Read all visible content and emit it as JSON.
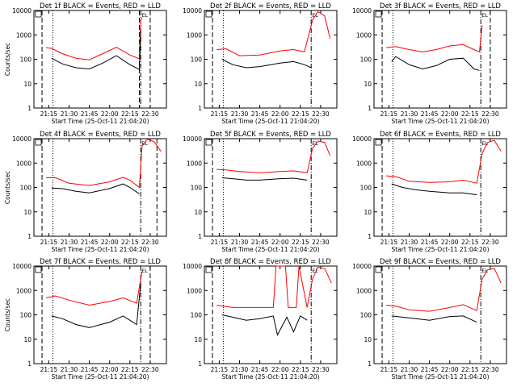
{
  "figure": {
    "x_tick_labels": [
      "21:15",
      "21:30",
      "21:45",
      "22:00",
      "22:15",
      "22:30"
    ],
    "y_tick_labels": [
      "1",
      "10",
      "100",
      "1000",
      "10000"
    ],
    "colors": {
      "events": "#000000",
      "lld": "#ff0000",
      "axes": "#000000",
      "background": "#ffffff"
    }
  },
  "chart_data": [
    {
      "type": "line",
      "title": "Det 1f BLACK = Events, RED = LLD",
      "xlabel": "Start Time (25-Oct-11 21:04:20)",
      "ylabel": "Counts/sec",
      "y_scale": "log",
      "ylim": [
        1,
        10000
      ],
      "xlim": [
        "21:04",
        "22:42"
      ],
      "x_ticks": [
        "21:15",
        "21:30",
        "21:45",
        "22:00",
        "22:15",
        "22:30"
      ],
      "y_ticks": [
        1,
        10,
        100,
        1000,
        10000
      ],
      "markers": {
        "dashed": [
          "21:10",
          "22:22",
          "22:30"
        ],
        "dotted": [
          "21:18"
        ],
        "dashdot": [
          "22:23"
        ]
      },
      "end_label": "EL",
      "series": [
        {
          "color": "#ff0000",
          "x": [
            "21:13",
            "21:17",
            "21:25",
            "21:35",
            "21:45",
            "21:55",
            "22:05",
            "22:15",
            "22:22",
            "22:23",
            "22:24"
          ],
          "values": [
            300,
            280,
            170,
            110,
            95,
            170,
            310,
            150,
            105,
            4000,
            5000
          ]
        },
        {
          "color": "#000000",
          "x": [
            "21:17",
            "21:25",
            "21:35",
            "21:45",
            "21:55",
            "22:05",
            "22:15",
            "22:22",
            "22:23"
          ],
          "values": [
            110,
            65,
            45,
            40,
            70,
            140,
            60,
            38,
            1500
          ]
        }
      ]
    },
    {
      "type": "line",
      "title": "Det 2f BLACK = Events, RED = LLD",
      "xlabel": "Start Time (25-Oct-11 21:04:20)",
      "ylabel": "",
      "y_scale": "log",
      "ylim": [
        1,
        10000
      ],
      "xlim": [
        "21:04",
        "22:42"
      ],
      "x_ticks": [
        "21:15",
        "21:30",
        "21:45",
        "22:00",
        "22:15",
        "22:30"
      ],
      "y_ticks": [
        1,
        10,
        100,
        1000,
        10000
      ],
      "markers": {
        "dashed": [
          "21:10"
        ],
        "dotted": [
          "21:18"
        ],
        "dashdot": [
          "22:23"
        ]
      },
      "end_label": "EL",
      "series": [
        {
          "color": "#ff0000",
          "x": [
            "21:13",
            "21:20",
            "21:30",
            "21:45",
            "22:00",
            "22:10",
            "22:18",
            "22:24",
            "22:28",
            "22:33",
            "22:37"
          ],
          "values": [
            250,
            270,
            140,
            150,
            220,
            250,
            200,
            4000,
            9000,
            6000,
            700
          ]
        },
        {
          "color": "#000000",
          "x": [
            "21:17",
            "21:25",
            "21:35",
            "21:45",
            "22:00",
            "22:10",
            "22:18",
            "22:23"
          ],
          "values": [
            100,
            60,
            45,
            50,
            70,
            80,
            60,
            45
          ]
        }
      ]
    },
    {
      "type": "line",
      "title": "Det 3f BLACK = Events, RED = LLD",
      "xlabel": "Start Time (25-Oct-11 21:04:20)",
      "ylabel": "",
      "y_scale": "log",
      "ylim": [
        1,
        10000
      ],
      "xlim": [
        "21:04",
        "22:42"
      ],
      "x_ticks": [
        "21:15",
        "21:30",
        "21:45",
        "22:00",
        "22:15",
        "22:30"
      ],
      "y_ticks": [
        1,
        10,
        100,
        1000,
        10000
      ],
      "markers": {
        "dashed": [
          "21:10",
          "22:30"
        ],
        "dotted": [
          "21:18"
        ],
        "dashdot": [
          "22:23"
        ]
      },
      "end_label": "EL",
      "series": [
        {
          "color": "#ff0000",
          "x": [
            "21:13",
            "21:20",
            "21:30",
            "21:40",
            "21:50",
            "22:00",
            "22:10",
            "22:18",
            "22:22",
            "22:24"
          ],
          "values": [
            300,
            330,
            250,
            200,
            250,
            350,
            400,
            250,
            200,
            2500
          ]
        },
        {
          "color": "#000000",
          "x": [
            "21:17",
            "21:20",
            "21:30",
            "21:40",
            "21:50",
            "22:00",
            "22:10",
            "22:18",
            "22:22"
          ],
          "values": [
            80,
            130,
            60,
            40,
            55,
            100,
            110,
            40,
            35
          ]
        }
      ]
    },
    {
      "type": "line",
      "title": "Det 4f BLACK = Events, RED = LLD",
      "xlabel": "Start Time (25-Oct-11 21:04:20)",
      "ylabel": "Counts/sec",
      "y_scale": "log",
      "ylim": [
        1,
        10000
      ],
      "xlim": [
        "21:04",
        "22:42"
      ],
      "x_ticks": [
        "21:15",
        "21:30",
        "21:45",
        "22:00",
        "22:15",
        "22:30"
      ],
      "y_ticks": [
        1,
        10,
        100,
        1000,
        10000
      ],
      "markers": {
        "dashed": [
          "21:10",
          "22:35"
        ],
        "dotted": [
          "21:18"
        ],
        "dashdot": [
          "22:23"
        ]
      },
      "end_label": "EL",
      "series": [
        {
          "color": "#ff0000",
          "x": [
            "21:13",
            "21:20",
            "21:30",
            "21:45",
            "22:00",
            "22:10",
            "22:15",
            "22:22",
            "22:24",
            "22:28",
            "22:33",
            "22:38"
          ],
          "values": [
            250,
            250,
            150,
            120,
            170,
            260,
            200,
            100,
            5000,
            9500,
            7500,
            3000
          ]
        },
        {
          "color": "#000000",
          "x": [
            "21:17",
            "21:25",
            "21:35",
            "21:45",
            "22:00",
            "22:10",
            "22:15",
            "22:22"
          ],
          "values": [
            95,
            90,
            70,
            60,
            90,
            140,
            100,
            55
          ]
        }
      ]
    },
    {
      "type": "line",
      "title": "Det 5f BLACK = Events, RED = LLD",
      "xlabel": "Start Time (25-Oct-11 21:04:20)",
      "ylabel": "",
      "y_scale": "log",
      "ylim": [
        1,
        10000
      ],
      "xlim": [
        "21:04",
        "22:42"
      ],
      "x_ticks": [
        "21:15",
        "21:30",
        "21:45",
        "22:00",
        "22:15",
        "22:30"
      ],
      "y_ticks": [
        1,
        10,
        100,
        1000,
        10000
      ],
      "markers": {
        "dashed": [
          "21:10"
        ],
        "dotted": [
          "21:18"
        ],
        "dashdot": [
          "22:23"
        ]
      },
      "end_label": "EL",
      "series": [
        {
          "color": "#ff0000",
          "x": [
            "21:13",
            "21:20",
            "21:30",
            "21:45",
            "22:00",
            "22:10",
            "22:20",
            "22:24",
            "22:28",
            "22:33",
            "22:37"
          ],
          "values": [
            550,
            520,
            450,
            400,
            450,
            480,
            400,
            4000,
            8000,
            7000,
            2000
          ]
        },
        {
          "color": "#000000",
          "x": [
            "21:17",
            "21:25",
            "21:35",
            "21:45",
            "22:00",
            "22:10",
            "22:20"
          ],
          "values": [
            250,
            230,
            200,
            200,
            230,
            240,
            200
          ]
        }
      ]
    },
    {
      "type": "line",
      "title": "Det 6f BLACK = Events, RED = LLD",
      "xlabel": "Start Time (25-Oct-11 21:04:20)",
      "ylabel": "",
      "y_scale": "log",
      "ylim": [
        1,
        10000
      ],
      "xlim": [
        "21:04",
        "22:42"
      ],
      "x_ticks": [
        "21:15",
        "21:30",
        "21:45",
        "22:00",
        "22:15",
        "22:30"
      ],
      "y_ticks": [
        1,
        10,
        100,
        1000,
        10000
      ],
      "markers": {
        "dashed": [
          "21:10"
        ],
        "dotted": [
          "21:18"
        ],
        "dashdot": [
          "22:23"
        ]
      },
      "end_label": "EL",
      "series": [
        {
          "color": "#ff0000",
          "x": [
            "21:13",
            "21:20",
            "21:30",
            "21:45",
            "22:00",
            "22:10",
            "22:20",
            "22:24",
            "22:28",
            "22:33",
            "22:38"
          ],
          "values": [
            300,
            280,
            180,
            160,
            170,
            200,
            150,
            2500,
            7000,
            8500,
            3000
          ]
        },
        {
          "color": "#000000",
          "x": [
            "21:17",
            "21:25",
            "21:35",
            "21:45",
            "22:00",
            "22:10",
            "22:20"
          ],
          "values": [
            140,
            100,
            80,
            70,
            60,
            60,
            50
          ]
        }
      ]
    },
    {
      "type": "line",
      "title": "Det 7f BLACK = Events, RED = LLD",
      "xlabel": "Start Time (25-Oct-11 21:04:20)",
      "ylabel": "Counts/sec",
      "y_scale": "log",
      "ylim": [
        1,
        10000
      ],
      "xlim": [
        "21:04",
        "22:42"
      ],
      "x_ticks": [
        "21:15",
        "21:30",
        "21:45",
        "22:00",
        "22:15",
        "22:30"
      ],
      "y_ticks": [
        1,
        10,
        100,
        1000,
        10000
      ],
      "markers": {
        "dashed": [
          "21:10",
          "22:30"
        ],
        "dotted": [
          "21:18"
        ],
        "dashdot": [
          "22:23"
        ]
      },
      "end_label": "EL",
      "series": [
        {
          "color": "#ff0000",
          "x": [
            "21:13",
            "21:20",
            "21:30",
            "21:45",
            "22:00",
            "22:10",
            "22:20",
            "22:23",
            "22:24"
          ],
          "values": [
            500,
            600,
            400,
            250,
            350,
            500,
            300,
            3000,
            6000
          ]
        },
        {
          "color": "#000000",
          "x": [
            "21:17",
            "21:25",
            "21:35",
            "21:45",
            "22:00",
            "22:10",
            "22:20",
            "22:23"
          ],
          "values": [
            90,
            70,
            40,
            30,
            50,
            90,
            40,
            2000
          ]
        }
      ]
    },
    {
      "type": "line",
      "title": "Det 8f BLACK = Events, RED = LLD",
      "xlabel": "Start Time (25-Oct-11 21:04:20)",
      "ylabel": "",
      "y_scale": "log",
      "ylim": [
        1,
        10000
      ],
      "xlim": [
        "21:04",
        "22:42"
      ],
      "x_ticks": [
        "21:15",
        "21:30",
        "21:45",
        "22:00",
        "22:15",
        "22:30"
      ],
      "y_ticks": [
        1,
        10,
        100,
        1000,
        10000
      ],
      "markers": {
        "dashed": [
          "21:10"
        ],
        "dotted": [
          "21:18"
        ],
        "dashdot": [
          "22:23"
        ]
      },
      "end_label": "EL",
      "series": [
        {
          "color": "#ff0000",
          "x": [
            "21:13",
            "21:25",
            "21:40",
            "21:55",
            "21:57",
            "22:04",
            "22:06",
            "22:12",
            "22:14",
            "22:20",
            "22:24",
            "22:28",
            "22:33",
            "22:38"
          ],
          "values": [
            250,
            200,
            200,
            200,
            10000,
            10000,
            200,
            200,
            10000,
            200,
            3000,
            9000,
            8000,
            2000
          ]
        },
        {
          "color": "#000000",
          "x": [
            "21:17",
            "21:25",
            "21:35",
            "21:45",
            "21:55",
            "21:58",
            "22:05",
            "22:10",
            "22:15",
            "22:20"
          ],
          "values": [
            100,
            80,
            60,
            70,
            90,
            15,
            80,
            20,
            90,
            60
          ]
        }
      ]
    },
    {
      "type": "line",
      "title": "Det 9f BLACK = Events, RED = LLD",
      "xlabel": "Start Time (25-Oct-11 21:04:20)",
      "ylabel": "",
      "y_scale": "log",
      "ylim": [
        1,
        10000
      ],
      "xlim": [
        "21:04",
        "22:42"
      ],
      "x_ticks": [
        "21:15",
        "21:30",
        "21:45",
        "22:00",
        "22:15",
        "22:30"
      ],
      "y_ticks": [
        1,
        10,
        100,
        1000,
        10000
      ],
      "markers": {
        "dashed": [
          "21:10"
        ],
        "dotted": [
          "21:18"
        ],
        "dashdot": [
          "22:23"
        ]
      },
      "end_label": "EL",
      "series": [
        {
          "color": "#ff0000",
          "x": [
            "21:13",
            "21:20",
            "21:30",
            "21:45",
            "22:00",
            "22:10",
            "22:20",
            "22:24",
            "22:28",
            "22:33",
            "22:38"
          ],
          "values": [
            250,
            230,
            160,
            140,
            200,
            260,
            150,
            3000,
            7000,
            8000,
            2000
          ]
        },
        {
          "color": "#000000",
          "x": [
            "21:17",
            "21:25",
            "21:35",
            "21:45",
            "22:00",
            "22:10",
            "22:20"
          ],
          "values": [
            90,
            80,
            70,
            60,
            85,
            90,
            50
          ]
        }
      ]
    }
  ]
}
